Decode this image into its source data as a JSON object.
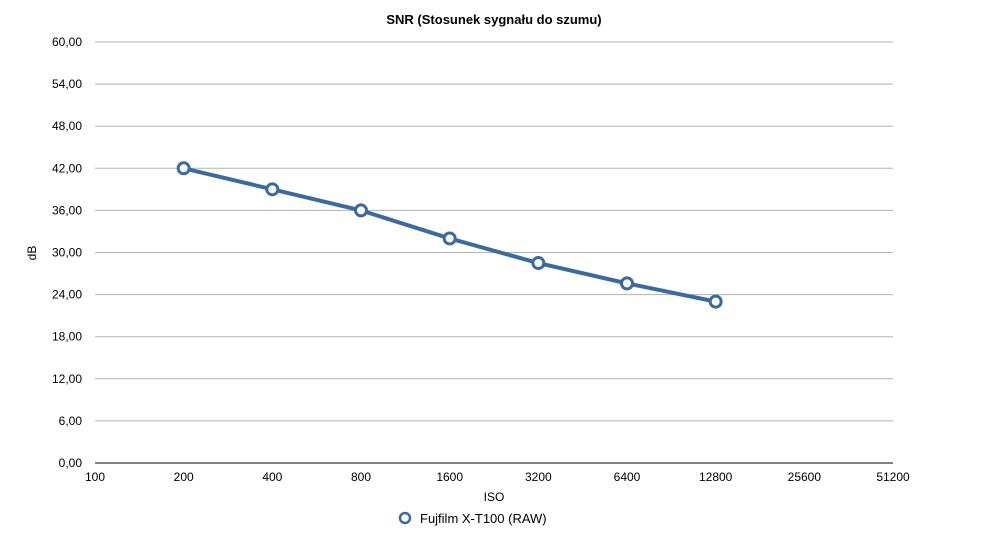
{
  "chart_data": {
    "type": "line",
    "title": "SNR (Stosunek sygnału do szumu)",
    "xlabel": "ISO",
    "ylabel": "dB",
    "x_scale": "log2",
    "x_ticks": [
      "100",
      "200",
      "400",
      "800",
      "1600",
      "3200",
      "6400",
      "12800",
      "25600",
      "51200"
    ],
    "y_ticks": [
      "0,00",
      "6,00",
      "12,00",
      "18,00",
      "24,00",
      "30,00",
      "36,00",
      "42,00",
      "48,00",
      "54,00",
      "60,00"
    ],
    "ylim": [
      0,
      60
    ],
    "grid": true,
    "legend_position": "bottom-center",
    "series": [
      {
        "name": "Fujfilm X-T100 (RAW)",
        "color": "#3A6A9E",
        "x": [
          200,
          400,
          800,
          1600,
          3200,
          6400,
          12800
        ],
        "y": [
          42.0,
          39.0,
          36.0,
          32.0,
          28.5,
          25.6,
          23.0
        ]
      }
    ]
  }
}
